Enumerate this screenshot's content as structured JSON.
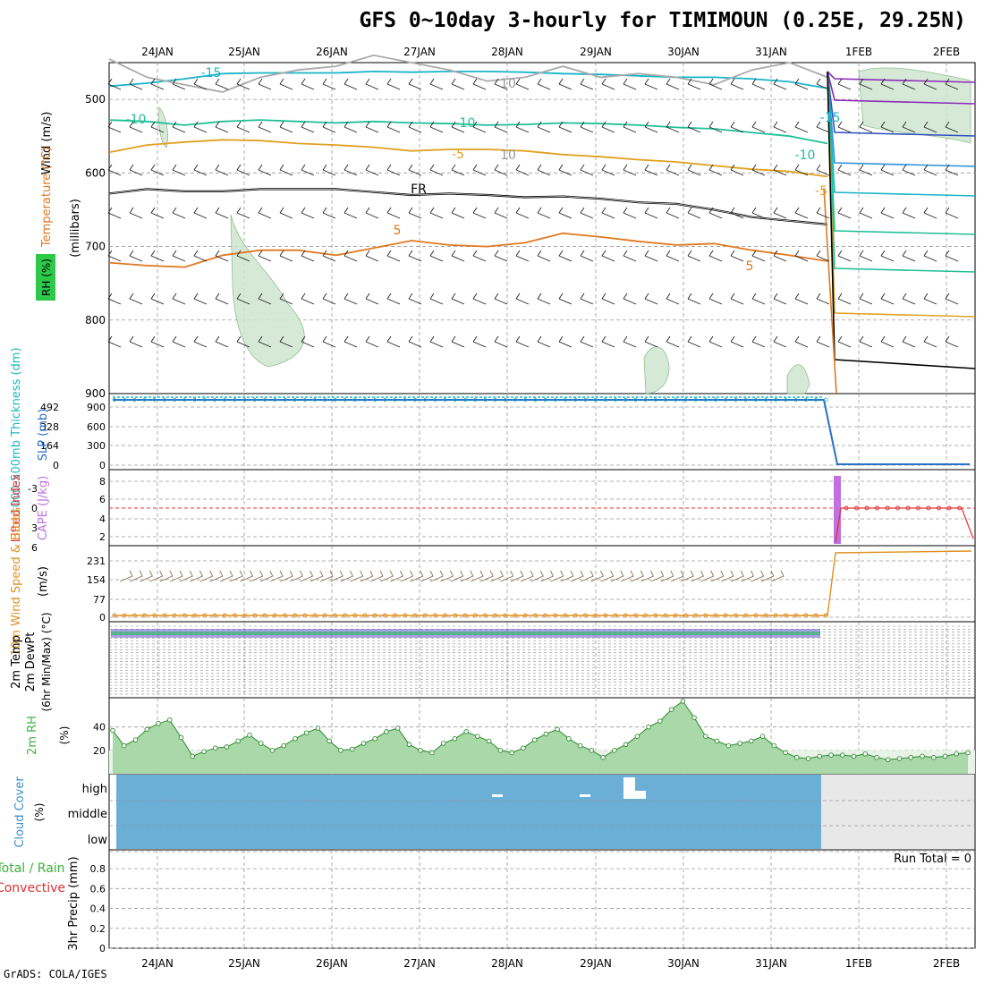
{
  "title": "GFS 0~10day 3-hourly for TIMIMOUN (0.25E, 29.25N)",
  "credit": "GrADS: COLA/IGES",
  "colors": {
    "rh_fill": "#cfe6cf",
    "freezing": "#000000",
    "temp_minus15": "#1ab4c8",
    "temp_minus10": "#1fbf98",
    "temp_minus5": "#e0a020",
    "temp_5": "#e07820",
    "slp": "#2a70c8",
    "thickness": "#20b8c0",
    "cape": "#c070e0",
    "lifted_index": "#e03030",
    "wind_speed": "#e09020",
    "barbs": "#8a7050",
    "rh2m": "#40b040",
    "cloud": "#6baed6",
    "cloud_missing": "#e8e8e8"
  },
  "chart_data": [
    {
      "id": "upper_air",
      "type": "line",
      "x": [
        "24JAN",
        "25JAN",
        "26JAN",
        "27JAN",
        "28JAN",
        "29JAN",
        "30JAN",
        "31JAN",
        "1FEB",
        "2FEB"
      ],
      "y_axis": {
        "label": "(millibars)",
        "ticks": [
          500,
          600,
          700,
          800,
          900
        ],
        "ylim": [
          450,
          900
        ]
      },
      "side_labels": [
        "RH (%)",
        "Temperature (°C)",
        "Wind (m/s)"
      ],
      "contour_labels": [
        "-15",
        "-10",
        "-5",
        "FR",
        "5",
        "10"
      ],
      "series": [
        {
          "name": "-15",
          "pressure": [
            482,
            478,
            472,
            465,
            464,
            464,
            464,
            462,
            463,
            462,
            462,
            463,
            465,
            466,
            468,
            470,
            470,
            472,
            476,
            485
          ]
        },
        {
          "name": "-10",
          "pressure": [
            528,
            530,
            535,
            530,
            528,
            530,
            532,
            530,
            532,
            533,
            535,
            534,
            532,
            533,
            535,
            538,
            540,
            545,
            550,
            560
          ]
        },
        {
          "name": "-5",
          "pressure": [
            572,
            562,
            558,
            555,
            556,
            560,
            562,
            565,
            570,
            568,
            568,
            570,
            575,
            578,
            582,
            585,
            590,
            595,
            598,
            605
          ]
        },
        {
          "name": "FR",
          "pressure": [
            628,
            622,
            625,
            625,
            622,
            622,
            622,
            626,
            630,
            628,
            630,
            633,
            632,
            635,
            640,
            642,
            650,
            660,
            665,
            670
          ]
        },
        {
          "name": "5",
          "pressure": [
            722,
            726,
            728,
            712,
            705,
            705,
            712,
            702,
            692,
            698,
            700,
            695,
            682,
            687,
            693,
            698,
            696,
            705,
            712,
            720
          ]
        },
        {
          "name": "RH 10",
          "pressure": [
            445,
            470,
            480,
            490,
            470,
            460,
            455,
            440,
            450,
            460,
            475,
            470,
            455,
            470,
            465,
            470,
            480,
            460,
            450,
            470
          ]
        }
      ]
    },
    {
      "id": "thickness_slp",
      "type": "line",
      "side_labels": [
        "1000-500mb Thickness (dm)",
        "SLP (mb)"
      ],
      "left_ticks": [
        "492",
        "328",
        "164",
        "0"
      ],
      "right_ticks": [
        "900",
        "600",
        "300",
        "0"
      ],
      "series": [
        {
          "name": "SLP",
          "values_before": 1000,
          "values_after": 0
        },
        {
          "name": "Thickness",
          "values_before": 570,
          "values_after": 0
        }
      ]
    },
    {
      "id": "stability",
      "type": "line",
      "side_labels": [
        "Lifted Index",
        "CAPE (J/kg)"
      ],
      "left_ticks": [
        "-3",
        "0",
        "3",
        "6"
      ],
      "right_ticks": [
        "8",
        "6",
        "4",
        "2"
      ],
      "series": [
        {
          "name": "Lifted Index",
          "values_after": 0
        },
        {
          "name": "CAPE",
          "spike_at": "1FEB"
        }
      ]
    },
    {
      "id": "surface_wind",
      "type": "line",
      "side_labels": [
        "10m Wind Speed & Barbs",
        "(m/s)"
      ],
      "ticks": [
        "231",
        "154",
        "77",
        "0"
      ],
      "series": [
        {
          "name": "Wind Speed",
          "values_before": 4,
          "values_after": 240
        }
      ]
    },
    {
      "id": "temperature",
      "type": "line",
      "side_labels": [
        "2m Temp",
        "2m DewPt",
        "(6hr Min/Max) (°C)"
      ]
    },
    {
      "id": "rh2m",
      "type": "area",
      "side_labels": [
        "2m RH",
        "(%)"
      ],
      "ticks": [
        "40",
        "20"
      ],
      "ylim": [
        0,
        65
      ],
      "series": [
        {
          "name": "2m RH",
          "values": [
            37,
            24,
            29,
            38,
            43,
            46,
            31,
            15,
            19,
            22,
            23,
            28,
            33,
            26,
            20,
            24,
            30,
            35,
            39,
            28,
            20,
            21,
            26,
            30,
            36,
            39,
            25,
            20,
            18,
            26,
            30,
            36,
            32,
            28,
            20,
            18,
            22,
            29,
            34,
            38,
            30,
            24,
            20,
            14,
            20,
            25,
            32,
            40,
            45,
            55,
            62,
            48,
            32,
            28,
            24,
            26,
            28,
            32,
            24,
            18,
            14,
            13,
            15,
            16,
            16,
            15,
            17,
            14,
            12,
            13,
            14,
            15,
            14,
            15,
            17,
            18
          ]
        }
      ]
    },
    {
      "id": "cloud_cover",
      "type": "heatmap",
      "side_labels": [
        "Cloud Cover",
        "(%)"
      ],
      "levels": [
        "high",
        "middle",
        "low"
      ]
    },
    {
      "id": "precip",
      "type": "bar",
      "side_labels": [
        "Total / Rain",
        "Convective",
        "3hr Precip (mm)"
      ],
      "ticks": [
        "0.8",
        "0.6",
        "0.4",
        "0.2",
        "0"
      ],
      "ylim": [
        0,
        0.9
      ],
      "run_total": "Run Total = 0"
    }
  ]
}
